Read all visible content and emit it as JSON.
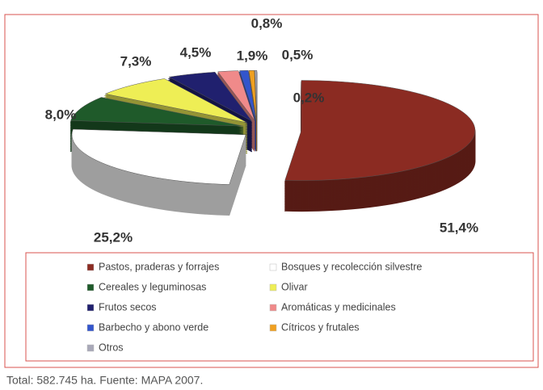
{
  "chart_data": {
    "type": "pie",
    "categories": [
      "Pastos, praderas y forrajes",
      "Bosques y recolección silvestre",
      "Cereales y leguminosas",
      "Olivar",
      "Frutos secos",
      "Aromáticas y medicinales",
      "Barbecho y abono verde",
      "Cítricos y frutales",
      "Otros"
    ],
    "values": [
      51.4,
      25.2,
      8.0,
      7.3,
      4.5,
      1.9,
      0.8,
      0.5,
      0.2
    ],
    "value_labels": [
      "51,4%",
      "25,2%",
      "8,0%",
      "7,3%",
      "4,5%",
      "1,9%",
      "0,8%",
      "0,5%",
      "0,2%"
    ],
    "colors": [
      "#8b2b22",
      "#ffffff",
      "#1f5a2a",
      "#eeee55",
      "#20206e",
      "#f08a8a",
      "#3355cc",
      "#f0a020",
      "#a8a8b8"
    ],
    "legend": "bottom",
    "source": "Total: 582.745 ha. Fuente: MAPA 2007."
  }
}
